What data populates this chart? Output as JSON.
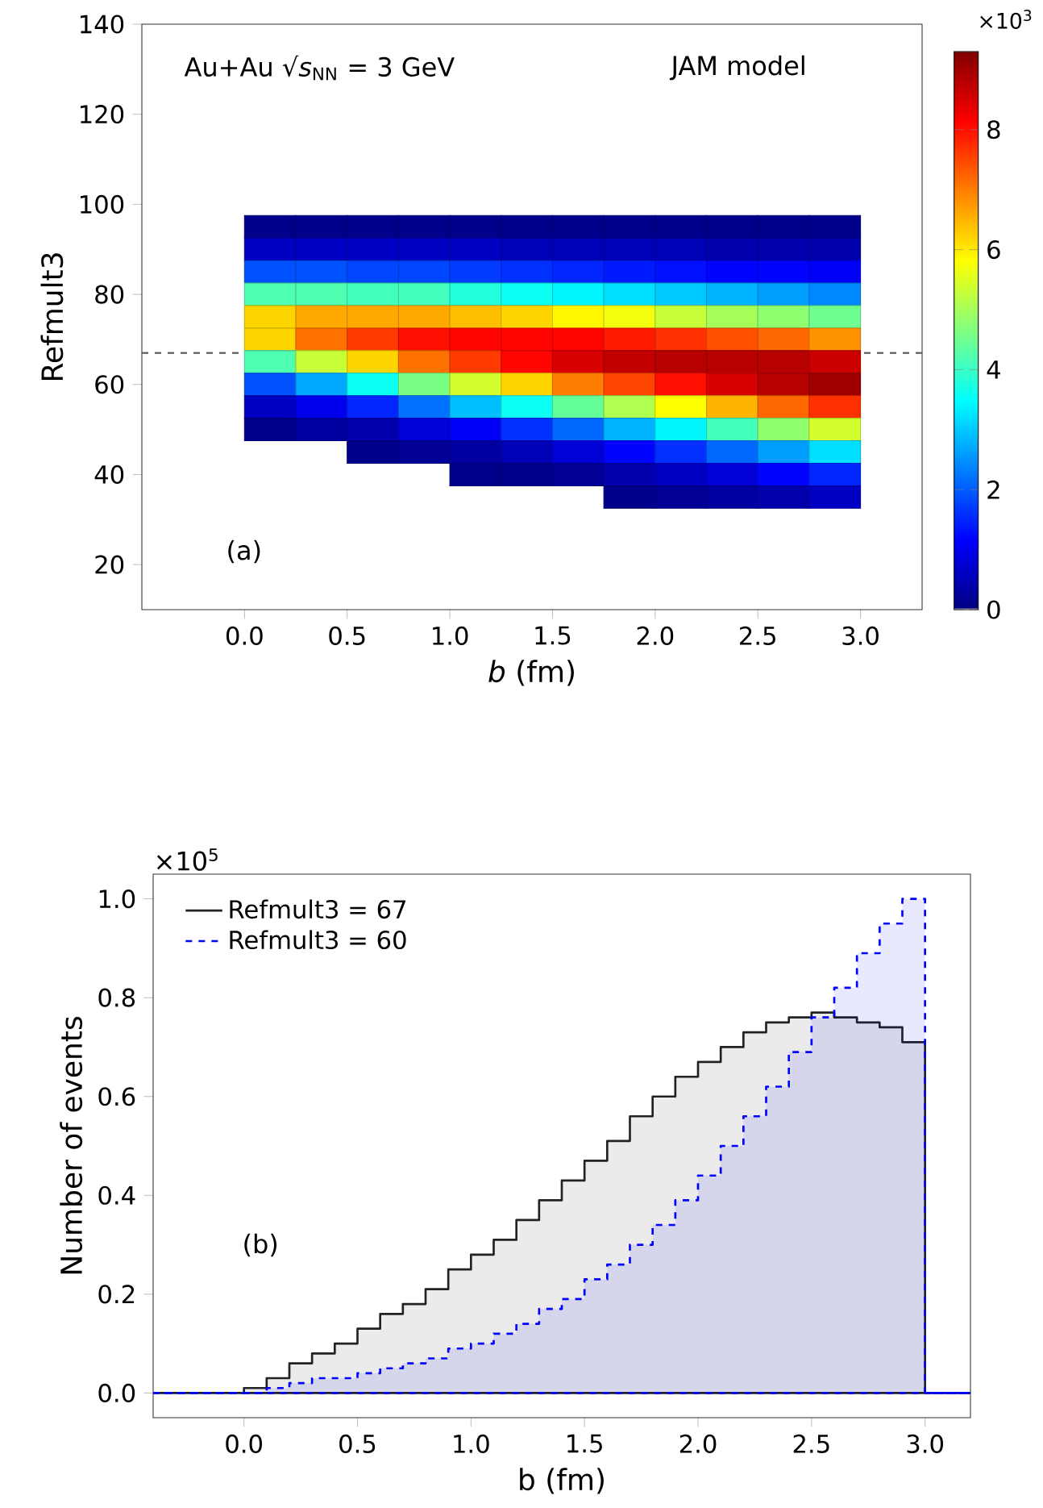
{
  "chart_data": [
    {
      "type": "scatter",
      "xlabel": "*b* (fm)",
      "ylabel": "Refmult3",
      "marker": "square",
      "annotations": [
        "Au+Au √*s*$_{NN}$ = 3 GeV",
        "JAM model",
        "(a)"
      ],
      "xlim": [
        -0.5,
        3.3
      ],
      "ylim": [
        10,
        140
      ],
      "xticks": [
        {
          "value": 0,
          "label": "0.0"
        },
        {
          "value": 0.5,
          "label": "0.5"
        },
        {
          "value": 1,
          "label": "1.0"
        },
        {
          "value": 1.5,
          "label": "1.5"
        },
        {
          "value": 2,
          "label": "2.0"
        },
        {
          "value": 2.5,
          "label": "2.5"
        },
        {
          "value": 3,
          "label": "3.0"
        }
      ],
      "yticks": [
        20,
        40,
        60,
        80,
        100,
        120,
        140
      ],
      "clim": [
        0,
        9.3
      ],
      "cticks": [
        0,
        2,
        4,
        6,
        8
      ],
      "clabel": "×10$^{3}$",
      "ref_lines": [
        {
          "axis": "y",
          "value": 67,
          "color": "#555555",
          "line_style": "dashed"
        }
      ],
      "x": [
        0.125,
        0.125,
        0.125,
        0.125,
        0.125,
        0.125,
        0.125,
        0.125,
        0.125,
        0.125,
        0.375,
        0.375,
        0.375,
        0.375,
        0.375,
        0.375,
        0.375,
        0.375,
        0.375,
        0.375,
        0.625,
        0.625,
        0.625,
        0.625,
        0.625,
        0.625,
        0.625,
        0.625,
        0.625,
        0.625,
        0.625,
        0.875,
        0.875,
        0.875,
        0.875,
        0.875,
        0.875,
        0.875,
        0.875,
        0.875,
        0.875,
        0.875,
        1.125,
        1.125,
        1.125,
        1.125,
        1.125,
        1.125,
        1.125,
        1.125,
        1.125,
        1.125,
        1.125,
        1.125,
        1.375,
        1.375,
        1.375,
        1.375,
        1.375,
        1.375,
        1.375,
        1.375,
        1.375,
        1.375,
        1.375,
        1.375,
        1.625,
        1.625,
        1.625,
        1.625,
        1.625,
        1.625,
        1.625,
        1.625,
        1.625,
        1.625,
        1.625,
        1.625,
        1.875,
        1.875,
        1.875,
        1.875,
        1.875,
        1.875,
        1.875,
        1.875,
        1.875,
        1.875,
        1.875,
        1.875,
        1.875,
        2.125,
        2.125,
        2.125,
        2.125,
        2.125,
        2.125,
        2.125,
        2.125,
        2.125,
        2.125,
        2.125,
        2.125,
        2.125,
        2.375,
        2.375,
        2.375,
        2.375,
        2.375,
        2.375,
        2.375,
        2.375,
        2.375,
        2.375,
        2.375,
        2.375,
        2.375,
        2.625,
        2.625,
        2.625,
        2.625,
        2.625,
        2.625,
        2.625,
        2.625,
        2.625,
        2.625,
        2.625,
        2.625,
        2.625,
        2.875,
        2.875,
        2.875,
        2.875,
        2.875,
        2.875,
        2.875,
        2.875,
        2.875,
        2.875,
        2.875,
        2.875,
        2.875
      ],
      "values": [
        95,
        90,
        85,
        80,
        75,
        70,
        65,
        60,
        55,
        50,
        95,
        90,
        85,
        80,
        75,
        70,
        65,
        60,
        55,
        50,
        95,
        90,
        85,
        80,
        75,
        70,
        65,
        60,
        55,
        50,
        45,
        95,
        90,
        85,
        80,
        75,
        70,
        65,
        60,
        55,
        50,
        45,
        95,
        90,
        85,
        80,
        75,
        70,
        65,
        60,
        55,
        50,
        45,
        40,
        95,
        90,
        85,
        80,
        75,
        70,
        65,
        60,
        55,
        50,
        45,
        40,
        95,
        90,
        85,
        80,
        75,
        70,
        65,
        60,
        55,
        50,
        45,
        40,
        95,
        90,
        85,
        80,
        75,
        70,
        65,
        60,
        55,
        50,
        45,
        40,
        35,
        95,
        90,
        85,
        80,
        75,
        70,
        65,
        60,
        55,
        50,
        45,
        40,
        35,
        95,
        90,
        85,
        80,
        75,
        70,
        65,
        60,
        55,
        50,
        45,
        40,
        35,
        95,
        90,
        85,
        80,
        75,
        70,
        65,
        60,
        55,
        50,
        45,
        40,
        35,
        95,
        90,
        85,
        80,
        75,
        70,
        65,
        60,
        55,
        50,
        45,
        40,
        35
      ],
      "cvalues": [
        0.1,
        0.6,
        1.9,
        4.2,
        6.2,
        6.2,
        4.2,
        1.9,
        0.6,
        0.1,
        0.1,
        0.6,
        1.9,
        4.2,
        6.6,
        7.1,
        5.3,
        2.7,
        1.0,
        0.3,
        0.1,
        0.6,
        1.8,
        4.1,
        6.6,
        7.6,
        6.2,
        3.6,
        1.5,
        0.4,
        0.1,
        0.1,
        0.6,
        1.8,
        4.1,
        6.6,
        8.0,
        7.1,
        4.6,
        2.2,
        0.8,
        0.2,
        0.1,
        0.6,
        1.7,
        3.8,
        6.4,
        8.1,
        7.6,
        5.4,
        2.9,
        1.1,
        0.3,
        0.1,
        0.1,
        0.5,
        1.6,
        3.6,
        6.2,
        8.1,
        8.1,
        6.2,
        3.6,
        1.6,
        0.5,
        0.1,
        0.1,
        0.5,
        1.5,
        3.4,
        5.9,
        8.1,
        8.5,
        7.0,
        4.4,
        2.1,
        0.8,
        0.2,
        0.1,
        0.5,
        1.4,
        3.2,
        5.7,
        7.9,
        8.7,
        7.5,
        5.1,
        2.8,
        1.2,
        0.4,
        0.1,
        0.1,
        0.5,
        1.3,
        3.0,
        5.3,
        7.7,
        8.8,
        8.0,
        5.8,
        3.4,
        1.6,
        0.6,
        0.2,
        0.1,
        0.4,
        1.2,
        2.8,
        5.0,
        7.4,
        8.8,
        8.5,
        6.5,
        4.1,
        2.1,
        0.8,
        0.3,
        0.1,
        0.4,
        1.2,
        2.6,
        4.8,
        7.2,
        8.8,
        8.8,
        7.2,
        4.8,
        2.6,
        1.2,
        0.4,
        0.1,
        0.4,
        1.1,
        2.4,
        4.5,
        6.8,
        8.6,
        9.0,
        7.7,
        5.4,
        3.2,
        1.5,
        0.6
      ]
    },
    {
      "type": "histogram",
      "xlabel": "b (fm)",
      "ylabel": "Number of events",
      "legend": "top left",
      "annotations": [
        "×10$^{5}$",
        "(b)"
      ],
      "xlim": [
        -0.4,
        3.2
      ],
      "ylim": [
        -0.05,
        1.05
      ],
      "xticks": [
        {
          "value": 0,
          "label": "0.0"
        },
        {
          "value": 0.5,
          "label": "0.5"
        },
        {
          "value": 1,
          "label": "1.0"
        },
        {
          "value": 1.5,
          "label": "1.5"
        },
        {
          "value": 2,
          "label": "2.0"
        },
        {
          "value": 2.5,
          "label": "2.5"
        },
        {
          "value": 3,
          "label": "3.0"
        }
      ],
      "yticks": [
        {
          "value": 0,
          "label": "0.0"
        },
        {
          "value": 0.2,
          "label": "0.2"
        },
        {
          "value": 0.4,
          "label": "0.4"
        },
        {
          "value": 0.6,
          "label": "0.6"
        },
        {
          "value": 0.8,
          "label": "0.8"
        },
        {
          "value": 1,
          "label": "1.0"
        }
      ],
      "bins": [
        -0.4,
        0.0,
        0.1,
        0.2,
        0.3,
        0.4,
        0.5,
        0.6,
        0.7,
        0.8,
        0.9,
        1.0,
        1.1,
        1.2,
        1.3,
        1.4,
        1.5,
        1.6,
        1.7,
        1.8,
        1.9,
        2.0,
        2.1,
        2.2,
        2.3,
        2.4,
        2.5,
        2.6,
        2.7,
        2.8,
        2.9,
        3.0,
        3.2
      ],
      "series": [
        {
          "name": "Refmult3 = 67",
          "color": "#222222",
          "line_style": "solid",
          "values": [
            0,
            0.01,
            0.03,
            0.06,
            0.08,
            0.1,
            0.13,
            0.16,
            0.18,
            0.21,
            0.25,
            0.28,
            0.31,
            0.35,
            0.39,
            0.43,
            0.47,
            0.51,
            0.56,
            0.6,
            0.64,
            0.67,
            0.7,
            0.73,
            0.75,
            0.76,
            0.77,
            0.76,
            0.75,
            0.74,
            0.71,
            0
          ]
        },
        {
          "name": "Refmult3 = 60",
          "color": "#0000ff",
          "line_style": "dashed",
          "values": [
            0,
            0.0,
            0.01,
            0.02,
            0.03,
            0.03,
            0.04,
            0.05,
            0.06,
            0.07,
            0.09,
            0.1,
            0.12,
            0.14,
            0.17,
            0.19,
            0.23,
            0.26,
            0.3,
            0.34,
            0.39,
            0.44,
            0.5,
            0.56,
            0.62,
            0.69,
            0.76,
            0.82,
            0.89,
            0.95,
            1.0,
            0
          ]
        }
      ]
    }
  ]
}
